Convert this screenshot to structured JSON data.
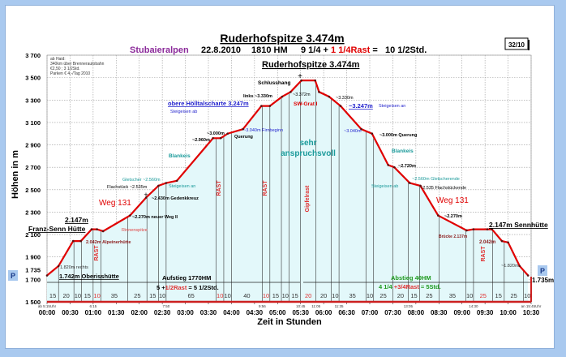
{
  "header": {
    "title": "Ruderhofspitze 3.474m",
    "region": "Stubaieralpen",
    "date": "22.8.2010",
    "hm": "1810 HM",
    "time_walk": "9 1/4 + ",
    "time_rest": "1 1/4Rast",
    "time_total": " =   10 1/2Std.",
    "badge": "32/10"
  },
  "info_box": [
    "ab Haid:",
    "340km über Brennerautobahn",
    "€2,50  ;  3 1/2Std.",
    "Parken € 4,-/Tag 2010"
  ],
  "parking_label": "P",
  "chart_data": {
    "type": "area",
    "title": "Ruderhofspitze 3.474m",
    "xlabel": "Zeit in Stunden",
    "ylabel": "Höhen in m",
    "xlim": [
      "00:00",
      "10:30"
    ],
    "ylim": [
      1500,
      3700
    ],
    "grid": true,
    "x_ticks": [
      "00:00",
      "00:30",
      "01:00",
      "01:30",
      "02:00",
      "02:30",
      "03:00",
      "03:30",
      "04:00",
      "04:30",
      "05:00",
      "05:30",
      "06:00",
      "06:30",
      "07:00",
      "07:30",
      "08:00",
      "08:30",
      "09:00",
      "09:30",
      "10:00",
      "10:30"
    ],
    "y_ticks": [
      3700,
      3500,
      3300,
      3100,
      2900,
      2700,
      2500,
      2300,
      2100,
      1900,
      1735,
      1700,
      1500
    ],
    "y_tick_labels": [
      "3 700",
      "3 500",
      "3 300",
      "3 100",
      "2 900",
      "2 700",
      "2 500",
      "2 300",
      "2 100",
      "1 900",
      "1 735",
      "1 700",
      "1 500"
    ],
    "profile": [
      [
        "00:00",
        1735
      ],
      [
        "00:15",
        1820
      ],
      [
        "00:34",
        2042
      ],
      [
        "00:44",
        2042
      ],
      [
        "00:58",
        2147
      ],
      [
        "01:05",
        2147
      ],
      [
        "01:13",
        2130
      ],
      [
        "01:48",
        2270
      ],
      [
        "02:09",
        2430
      ],
      [
        "02:25",
        2535
      ],
      [
        "02:35",
        2560
      ],
      [
        "02:49",
        2580
      ],
      [
        "03:36",
        2960
      ],
      [
        "03:46",
        2960
      ],
      [
        "03:55",
        3000
      ],
      [
        "04:15",
        3040
      ],
      [
        "04:39",
        3247
      ],
      [
        "04:50",
        3247
      ],
      [
        "05:06",
        3330
      ],
      [
        "05:17",
        3372
      ],
      [
        "05:31",
        3474
      ],
      [
        "05:49",
        3474
      ],
      [
        "05:54",
        3372
      ],
      [
        "06:07",
        3330
      ],
      [
        "06:22",
        3247
      ],
      [
        "06:49",
        3040
      ],
      [
        "07:03",
        3000
      ],
      [
        "07:24",
        2720
      ],
      [
        "07:32",
        2700
      ],
      [
        "07:52",
        2560
      ],
      [
        "08:06",
        2535
      ],
      [
        "08:29",
        2270
      ],
      [
        "09:06",
        2137
      ],
      [
        "09:15",
        2147
      ],
      [
        "09:33",
        2147
      ],
      [
        "09:39",
        2147
      ],
      [
        "09:52",
        2042
      ],
      [
        "10:00",
        2030
      ],
      [
        "10:15",
        1820
      ],
      [
        "10:26",
        1735
      ]
    ],
    "segments": [
      {
        "minutes": 15
      },
      {
        "minutes": 20
      },
      {
        "minutes": 10
      },
      {
        "minutes": 15
      },
      {
        "minutes": 10,
        "rest": true
      },
      {
        "minutes": 35
      },
      {
        "minutes": 25
      },
      {
        "minutes": 15
      },
      {
        "minutes": 10
      },
      {
        "minutes": 65
      },
      {
        "minutes": 10,
        "rest": true
      },
      {
        "minutes": 10
      },
      {
        "minutes": 40
      },
      {
        "minutes": 10,
        "rest": true
      },
      {
        "minutes": 15
      },
      {
        "minutes": 10
      },
      {
        "minutes": 15
      },
      {
        "minutes": 20,
        "rest": true
      },
      {
        "minutes": 20
      },
      {
        "minutes": 10
      },
      {
        "minutes": 35
      },
      {
        "minutes": 10
      },
      {
        "minutes": 25
      },
      {
        "minutes": 20
      },
      {
        "minutes": 15
      },
      {
        "minutes": 25
      },
      {
        "minutes": 35
      },
      {
        "minutes": 10
      },
      {
        "minutes": 25,
        "rest": true
      },
      {
        "minutes": 15
      },
      {
        "minutes": 25
      },
      {
        "minutes": 10
      }
    ],
    "clock_times": [
      {
        "at": "00:00",
        "label": "ab 5:15Uhr"
      },
      {
        "at": "01:00",
        "label": "6:15"
      },
      {
        "at": "02:35",
        "label": "7:50"
      },
      {
        "at": "04:40",
        "label": "9:56"
      },
      {
        "at": "05:30",
        "label": "10:45"
      },
      {
        "at": "05:50",
        "label": "11:05"
      },
      {
        "at": "06:20",
        "label": "11:35"
      },
      {
        "at": "07:50",
        "label": "13:05"
      },
      {
        "at": "09:15",
        "label": "14:30"
      },
      {
        "at": "10:30",
        "label": "an 15:45Uhr"
      }
    ],
    "annotations": {
      "summit": "Ruderhofspitze 3.474m",
      "schlusshang": "Schlusshang",
      "links": "links ~3.330m",
      "a3372": "~3.372m",
      "swgrat": "SW-Grat I",
      "a3330r": "~3.330m",
      "a3247r": "~3.247m",
      "steig_an_r": "Steigeisen an",
      "hoelltal": "obere Hölltalscharte 3.247m",
      "steig_ab_l": "Steigeisen ab",
      "firn": "~3.040m Firnbeginn",
      "a3000": "~3.000m",
      "querung": "Querung",
      "a2960": "~2.960m",
      "sehr": "sehr",
      "anspruchsvoll": "anspruchsvoll",
      "a3040r": "~3.040m",
      "querung_r": "~3.000m Querung",
      "blankeis_l": "Blankeis",
      "blankeis_r": "Blankeis",
      "a2720": "~2.720m",
      "gletscher": "Gletscher ~2.560m",
      "flachstueck": "Flachstück ~2.535m",
      "steig_an_l": "Steigeisen an",
      "gletscherende": "~2.560m Gletscherende",
      "steig_ab_r": "Steigeisen ab",
      "flachende": "~2.535 Flachstückende",
      "gedenkkreuz": "~2.430m Gedenkkreuz",
      "weg_l": "Weg 131",
      "weg_r": "Weg 131",
      "neuerweg": "~2.270m neuer Weg II",
      "a2270r": "~2.270m",
      "fs_alt": "2.147m",
      "fs_name": "Franz-Senn Hütte",
      "rinnen": "Rinnenspitze",
      "alpeiner": "2.042m Alpeinerhütte",
      "rechts": "1.820m rechts",
      "oberiss": "1.742m Oberisshütte",
      "bruecke": "Brücke 2.137m",
      "sennhuette": "2.147m Sennhütte",
      "a2042r": "2.042m",
      "a1820r": "~1.820m",
      "a1735": "1.735m",
      "rast": "RAST",
      "gipfelrast": "Gipfelrast",
      "aufstieg": "Aufstieg 1770HM",
      "auf_a": "5 +",
      "auf_b": "1/2Rast",
      "auf_c": " = 5 1/2Std.",
      "abstieg": "Abstieg 40HM",
      "ab_a": "4 1/4 ",
      "ab_b": "+3/4Rast",
      "ab_c": " = 5Std."
    }
  },
  "colors": {
    "profile": "#e00000",
    "fill": "#e3f8fa",
    "rest": "#e03030",
    "teal": "#1a9a9a",
    "blue": "#1f1fcc",
    "green": "#1f9a1f",
    "frame": "#a9c9ef"
  }
}
